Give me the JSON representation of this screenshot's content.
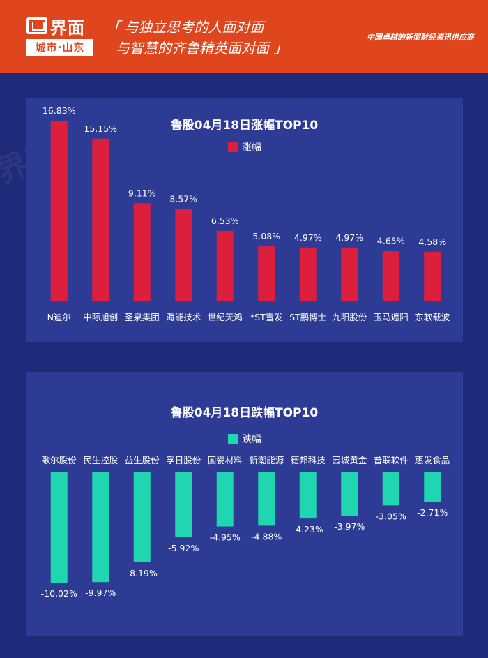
{
  "header": {
    "logo_name": "界面",
    "logo_sub": "城市·山东",
    "slogan_line1": "「 与独立思考的人面对面",
    "slogan_line2": "与智慧的齐鲁精英面对面 」",
    "provider": "中国卓越的新型财经资讯供应商"
  },
  "colors": {
    "background": "#1f2a7a",
    "panel": "#2d3b94",
    "header": "#e0461e",
    "gain": "#dc1f3c",
    "loss": "#1fd6b0"
  },
  "chart_data": [
    {
      "type": "bar",
      "title": "鲁股04月18日涨幅TOP10",
      "legend": "涨幅",
      "categories": [
        "N迪尔",
        "中际旭创",
        "圣泉集团",
        "海能技术",
        "世纪天鸿",
        "*ST雪发",
        "ST鹏博士",
        "九阳股份",
        "玉马遮阳",
        "东软载波"
      ],
      "values": [
        16.83,
        15.15,
        9.11,
        8.57,
        6.53,
        5.08,
        4.97,
        4.97,
        4.65,
        4.58
      ],
      "labels": [
        "16.83%",
        "15.15%",
        "9.11%",
        "8.57%",
        "6.53%",
        "5.08%",
        "4.97%",
        "4.97%",
        "4.65%",
        "4.58%"
      ],
      "ylim": [
        0,
        16.83
      ]
    },
    {
      "type": "bar",
      "title": "鲁股04月18日跌幅TOP10",
      "legend": "跌幅",
      "categories": [
        "歌尔股份",
        "民生控股",
        "益生股份",
        "孚日股份",
        "国瓷材料",
        "新潮能源",
        "德邦科技",
        "园城黄金",
        "普联软件",
        "惠发食品"
      ],
      "values": [
        -10.02,
        -9.97,
        -8.19,
        -5.92,
        -4.95,
        -4.88,
        -4.23,
        -3.97,
        -3.05,
        -2.71
      ],
      "labels": [
        "-10.02%",
        "-9.97%",
        "-8.19%",
        "-5.92%",
        "-4.95%",
        "-4.88%",
        "-4.23%",
        "-3.97%",
        "-3.05%",
        "-2.71%"
      ],
      "ylim": [
        -10.02,
        0
      ]
    }
  ]
}
